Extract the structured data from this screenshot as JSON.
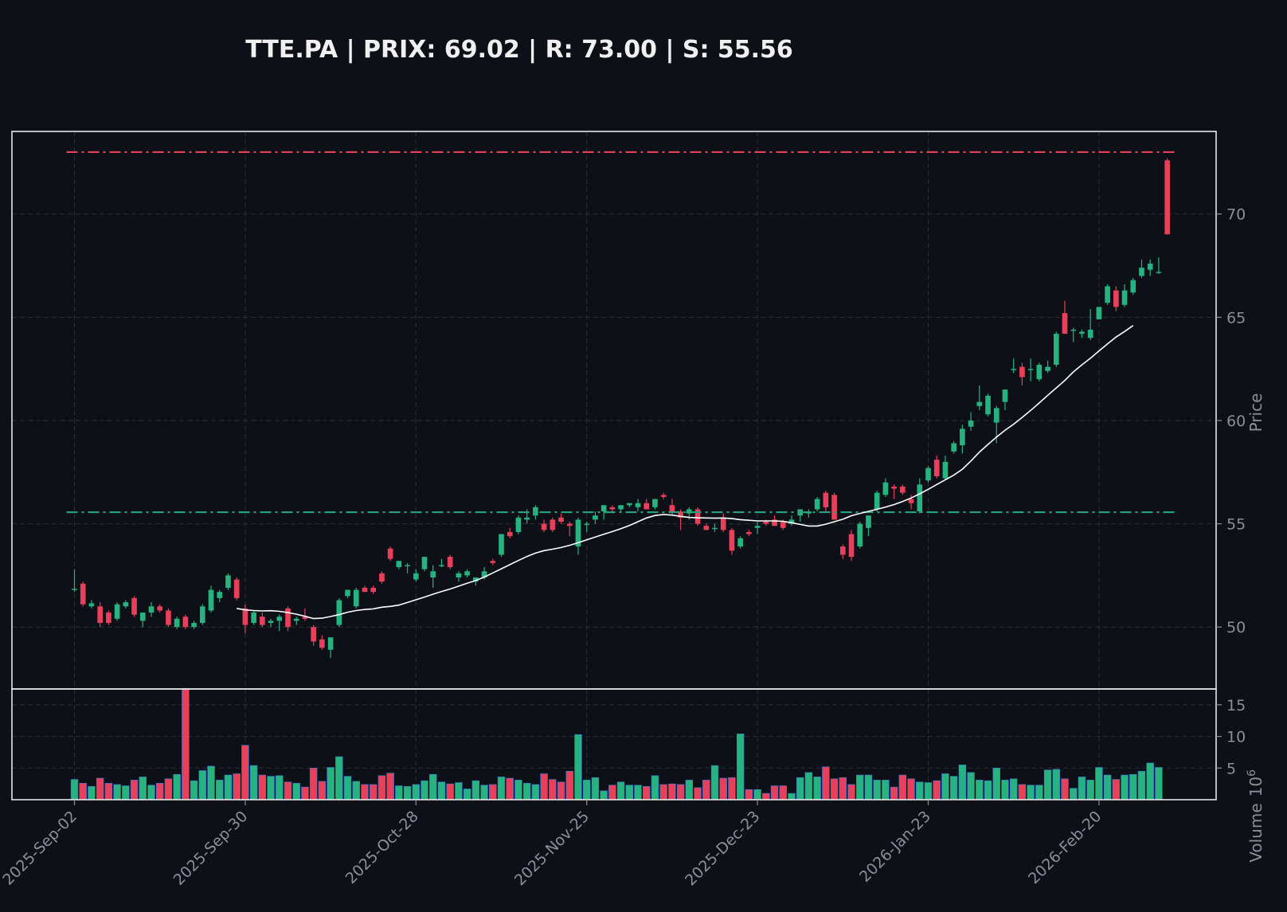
{
  "chart_data": {
    "type": "candlestick",
    "title": "TTE.PA | PRIX: 69.02 | R: 73.00 | S: 55.56",
    "ylabel_price": "Price",
    "ylabel_volume": "Volume",
    "volume_exponent_base": "10",
    "volume_exponent": "6",
    "x_tick_labels": [
      "2025-Sep-02",
      "2025-Sep-30",
      "2025-Oct-28",
      "2025-Nov-25",
      "2025-Dec-23",
      "2026-Jan-23",
      "2026-Feb-20"
    ],
    "x_tick_index": [
      0,
      20,
      40,
      60,
      80,
      100,
      120
    ],
    "price_ticks": [
      50,
      55,
      60,
      65,
      70
    ],
    "price_tick_labels": [
      "50",
      "55",
      "60",
      "65",
      "70"
    ],
    "volume_ticks": [
      5,
      10,
      15
    ],
    "volume_tick_labels": [
      "5",
      "10",
      "15"
    ],
    "price_ylim": [
      47,
      74
    ],
    "volume_ylim": [
      0,
      17.5
    ],
    "resistance": 73.0,
    "support": 55.56,
    "moving_average_start_index": 19,
    "grid": true,
    "colors": {
      "background": "#0d1017",
      "up": "#26b37f",
      "down": "#e8405b",
      "resistance": "#e8405b",
      "support": "#26a37a",
      "ma": "#ffffff",
      "frame": "#e6e6e6",
      "grid": "#2a2f3a"
    },
    "ohlc": [
      [
        51.8,
        52.8,
        51.7,
        51.85
      ],
      [
        52.1,
        52.2,
        51.0,
        51.1
      ],
      [
        51.0,
        51.3,
        50.9,
        51.15
      ],
      [
        51.0,
        51.2,
        50.0,
        50.2
      ],
      [
        50.7,
        50.8,
        50.1,
        50.2
      ],
      [
        50.4,
        51.2,
        50.3,
        51.1
      ],
      [
        51.0,
        51.3,
        50.9,
        51.2
      ],
      [
        51.4,
        51.5,
        50.5,
        50.6
      ],
      [
        50.3,
        50.6,
        50.0,
        50.7
      ],
      [
        50.7,
        51.2,
        50.5,
        51.0
      ],
      [
        51.0,
        51.1,
        50.7,
        50.8
      ],
      [
        50.8,
        50.9,
        50.0,
        50.1
      ],
      [
        50.0,
        50.5,
        49.9,
        50.4
      ],
      [
        50.5,
        50.6,
        49.9,
        50.0
      ],
      [
        50.0,
        50.3,
        49.9,
        50.2
      ],
      [
        50.2,
        51.1,
        50.1,
        51.0
      ],
      [
        50.8,
        52.0,
        50.7,
        51.8
      ],
      [
        51.4,
        51.8,
        51.2,
        51.7
      ],
      [
        51.9,
        52.6,
        51.8,
        52.5
      ],
      [
        52.3,
        52.4,
        51.3,
        51.4
      ],
      [
        50.9,
        51.1,
        49.7,
        50.1
      ],
      [
        50.2,
        50.8,
        50.1,
        50.7
      ],
      [
        50.5,
        50.7,
        50.0,
        50.1
      ],
      [
        50.2,
        50.4,
        50.0,
        50.3
      ],
      [
        50.3,
        50.6,
        49.8,
        50.5
      ],
      [
        50.9,
        51.0,
        49.8,
        50.0
      ],
      [
        50.3,
        50.5,
        50.1,
        50.4
      ],
      [
        50.5,
        50.9,
        50.3,
        50.4
      ],
      [
        50.0,
        50.1,
        49.1,
        49.3
      ],
      [
        49.4,
        49.6,
        48.9,
        49.0
      ],
      [
        48.9,
        49.5,
        48.5,
        49.5
      ],
      [
        50.1,
        51.4,
        50.0,
        51.3
      ],
      [
        51.5,
        51.8,
        51.4,
        51.8
      ],
      [
        51.0,
        51.9,
        50.9,
        51.8
      ],
      [
        51.9,
        52.0,
        51.7,
        51.7
      ],
      [
        51.9,
        52.0,
        51.6,
        51.7
      ],
      [
        52.6,
        52.7,
        52.1,
        52.2
      ],
      [
        53.8,
        53.9,
        53.2,
        53.3
      ],
      [
        52.9,
        53.2,
        52.8,
        53.2
      ],
      [
        53.0,
        53.1,
        52.6,
        53.0
      ],
      [
        52.3,
        52.8,
        52.2,
        52.6
      ],
      [
        52.8,
        53.4,
        52.7,
        53.4
      ],
      [
        52.4,
        53.0,
        51.9,
        52.7
      ],
      [
        53.0,
        53.3,
        52.9,
        53.0
      ],
      [
        53.4,
        53.5,
        52.8,
        52.9
      ],
      [
        52.4,
        52.7,
        52.2,
        52.6
      ],
      [
        52.5,
        52.8,
        52.4,
        52.7
      ],
      [
        52.2,
        52.4,
        52.0,
        52.4
      ],
      [
        52.4,
        52.9,
        52.3,
        52.7
      ],
      [
        53.2,
        53.3,
        53.0,
        53.1
      ],
      [
        53.5,
        54.5,
        53.4,
        54.5
      ],
      [
        54.6,
        54.8,
        54.3,
        54.4
      ],
      [
        54.6,
        55.4,
        54.5,
        55.3
      ],
      [
        55.2,
        55.7,
        55.0,
        55.3
      ],
      [
        55.4,
        55.9,
        55.2,
        55.8
      ],
      [
        55.0,
        55.2,
        54.6,
        54.7
      ],
      [
        55.2,
        55.3,
        54.6,
        54.7
      ],
      [
        55.3,
        55.5,
        55.0,
        55.1
      ],
      [
        55.0,
        55.1,
        54.4,
        54.9
      ],
      [
        53.9,
        55.3,
        53.5,
        55.2
      ],
      [
        55.0,
        55.1,
        54.6,
        55.0
      ],
      [
        55.2,
        55.6,
        55.0,
        55.4
      ],
      [
        55.6,
        55.9,
        55.2,
        55.9
      ],
      [
        55.8,
        55.9,
        55.5,
        55.7
      ],
      [
        55.7,
        55.9,
        55.6,
        55.9
      ],
      [
        55.9,
        56.0,
        55.8,
        56.0
      ],
      [
        55.8,
        56.2,
        55.6,
        56.0
      ],
      [
        56.0,
        56.2,
        55.7,
        55.7
      ],
      [
        55.8,
        56.2,
        55.7,
        56.2
      ],
      [
        56.4,
        56.5,
        56.2,
        56.3
      ],
      [
        55.9,
        56.2,
        55.4,
        55.6
      ],
      [
        55.6,
        55.7,
        54.7,
        55.3
      ],
      [
        55.5,
        55.8,
        55.2,
        55.7
      ],
      [
        55.7,
        55.8,
        54.9,
        55.0
      ],
      [
        54.9,
        55.0,
        54.7,
        54.7
      ],
      [
        54.8,
        55.0,
        54.6,
        54.8
      ],
      [
        55.3,
        55.5,
        54.6,
        54.7
      ],
      [
        54.7,
        54.8,
        53.5,
        53.7
      ],
      [
        53.9,
        54.4,
        53.8,
        54.3
      ],
      [
        54.6,
        54.7,
        54.4,
        54.5
      ],
      [
        54.8,
        55.1,
        54.5,
        54.9
      ],
      [
        55.1,
        55.2,
        54.9,
        55.0
      ],
      [
        55.2,
        55.4,
        54.9,
        54.9
      ],
      [
        55.1,
        55.2,
        54.7,
        54.8
      ],
      [
        55.0,
        55.4,
        54.9,
        55.2
      ],
      [
        55.4,
        55.7,
        55.1,
        55.7
      ],
      [
        55.5,
        55.7,
        55.3,
        55.6
      ],
      [
        55.7,
        56.3,
        55.6,
        56.2
      ],
      [
        56.5,
        56.6,
        55.6,
        55.8
      ],
      [
        56.4,
        56.5,
        55.2,
        55.2
      ],
      [
        53.9,
        54.0,
        53.3,
        53.5
      ],
      [
        54.5,
        54.7,
        53.2,
        53.4
      ],
      [
        53.9,
        55.1,
        53.8,
        55.0
      ],
      [
        54.8,
        55.4,
        54.4,
        55.4
      ],
      [
        55.7,
        56.6,
        55.6,
        56.5
      ],
      [
        56.4,
        57.2,
        56.3,
        57.0
      ],
      [
        56.8,
        56.9,
        56.2,
        56.7
      ],
      [
        56.8,
        56.9,
        56.4,
        56.5
      ],
      [
        56.2,
        56.4,
        55.7,
        56.0
      ],
      [
        55.6,
        57.2,
        55.5,
        56.9
      ],
      [
        57.1,
        57.8,
        57.0,
        57.7
      ],
      [
        58.1,
        58.3,
        57.2,
        57.3
      ],
      [
        57.2,
        58.3,
        57.1,
        58.0
      ],
      [
        58.5,
        59.0,
        58.4,
        58.9
      ],
      [
        58.8,
        59.8,
        58.4,
        59.6
      ],
      [
        59.7,
        60.4,
        59.5,
        60.0
      ],
      [
        60.7,
        61.7,
        60.5,
        60.9
      ],
      [
        60.3,
        61.3,
        60.2,
        61.2
      ],
      [
        59.9,
        60.7,
        58.9,
        60.6
      ],
      [
        60.9,
        61.5,
        60.5,
        61.5
      ],
      [
        62.5,
        63.0,
        62.3,
        62.5
      ],
      [
        62.6,
        62.8,
        61.7,
        62.1
      ],
      [
        62.5,
        63.0,
        61.9,
        62.5
      ],
      [
        62.0,
        62.8,
        61.9,
        62.7
      ],
      [
        62.4,
        62.9,
        62.3,
        62.6
      ],
      [
        62.7,
        64.3,
        62.6,
        64.2
      ],
      [
        65.2,
        65.8,
        64.2,
        64.2
      ],
      [
        64.4,
        64.5,
        63.8,
        64.4
      ],
      [
        64.2,
        64.4,
        64.0,
        64.3
      ],
      [
        64.0,
        65.4,
        63.9,
        64.4
      ],
      [
        64.9,
        65.5,
        64.9,
        65.5
      ],
      [
        65.7,
        66.6,
        65.6,
        66.5
      ],
      [
        66.3,
        66.5,
        65.3,
        65.5
      ],
      [
        65.6,
        66.6,
        65.5,
        66.3
      ],
      [
        66.2,
        66.9,
        66.1,
        66.8
      ],
      [
        67.0,
        67.8,
        66.9,
        67.4
      ],
      [
        67.3,
        67.8,
        67.0,
        67.6
      ],
      [
        67.2,
        67.9,
        67.1,
        67.2
      ],
      [
        72.6,
        72.7,
        69.0,
        69.02
      ]
    ],
    "volume": [
      3.2,
      2.6,
      2.1,
      3.4,
      2.6,
      2.4,
      2.2,
      3.1,
      3.6,
      2.3,
      2.6,
      3.3,
      4.0,
      17.6,
      3.0,
      4.6,
      5.3,
      3.1,
      3.9,
      4.1,
      8.6,
      5.4,
      3.9,
      3.7,
      3.8,
      2.8,
      2.6,
      2.0,
      5.0,
      2.9,
      5.1,
      6.8,
      3.7,
      2.9,
      2.4,
      2.4,
      3.8,
      4.2,
      2.2,
      2.1,
      2.4,
      3.0,
      4.0,
      2.8,
      2.5,
      2.7,
      1.7,
      3.0,
      2.3,
      2.4,
      3.6,
      3.4,
      3.1,
      2.6,
      2.4,
      4.1,
      3.2,
      2.8,
      4.5,
      10.3,
      3.1,
      3.5,
      1.4,
      2.3,
      2.8,
      2.3,
      2.3,
      2.1,
      3.8,
      2.4,
      2.5,
      2.4,
      3.1,
      1.9,
      3.1,
      5.4,
      3.4,
      3.5,
      10.4,
      1.6,
      1.6,
      1.0,
      2.2,
      2.2,
      1.0,
      3.5,
      4.3,
      3.6,
      5.2,
      3.3,
      3.5,
      2.4,
      3.9,
      3.9,
      3.1,
      3.1,
      2.0,
      3.9,
      3.3,
      2.8,
      2.7,
      3.0,
      4.1,
      3.7,
      5.5,
      4.3,
      3.1,
      3.0,
      5.0,
      3.1,
      3.3,
      2.4,
      2.3,
      2.3,
      4.7,
      4.8,
      3.3,
      1.8,
      3.6,
      3.1,
      5.1,
      3.9,
      3.2,
      3.9,
      4.0,
      4.5,
      5.8,
      5.1
    ],
    "moving_average": [
      50.9,
      50.83,
      50.8,
      50.78,
      50.79,
      50.76,
      50.7,
      50.62,
      50.52,
      50.41,
      50.43,
      50.51,
      50.6,
      50.72,
      50.8,
      50.85,
      50.88,
      50.96,
      51.0,
      51.06,
      51.19,
      51.32,
      51.45,
      51.59,
      51.72,
      51.84,
      51.98,
      52.12,
      52.25,
      52.42,
      52.62,
      52.82,
      53.02,
      53.22,
      53.42,
      53.58,
      53.7,
      53.77,
      53.85,
      53.96,
      54.08,
      54.22,
      54.36,
      54.49,
      54.62,
      54.76,
      54.92,
      55.1,
      55.28,
      55.4,
      55.45,
      55.42,
      55.36,
      55.31,
      55.29,
      55.28,
      55.27,
      55.28,
      55.25,
      55.2,
      55.17,
      55.14,
      55.14,
      55.14,
      55.12,
      55.05,
      54.97,
      54.89,
      54.89,
      54.98,
      55.1,
      55.22,
      55.39,
      55.5,
      55.6,
      55.7,
      55.81,
      55.93,
      56.08,
      56.25,
      56.45,
      56.67,
      56.9,
      57.13,
      57.36,
      57.64,
      58.04,
      58.47,
      58.84,
      59.2,
      59.53,
      59.82,
      60.15,
      60.49,
      60.85,
      61.22,
      61.58,
      61.94,
      62.35,
      62.7,
      63.02,
      63.37,
      63.71,
      64.04,
      64.31,
      64.6
    ]
  }
}
